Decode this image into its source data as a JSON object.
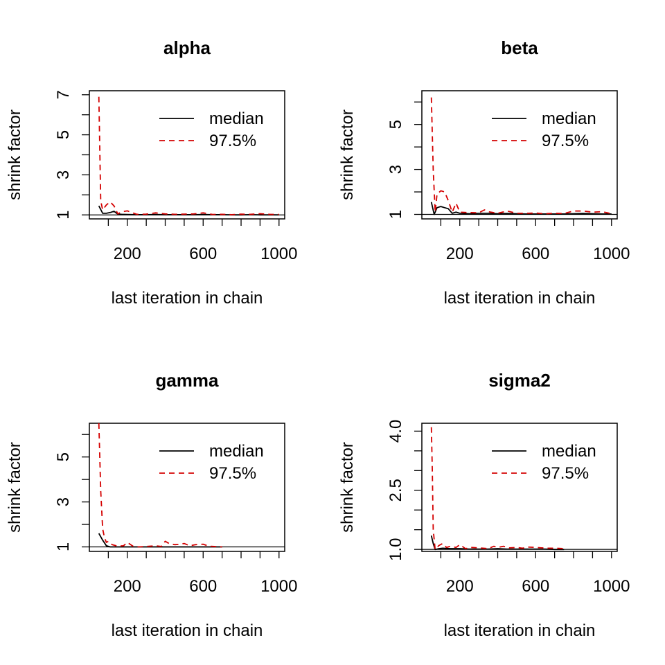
{
  "chart_data": [
    {
      "type": "line",
      "title": "alpha",
      "xlabel": "last iteration in chain",
      "ylabel": "shrink factor",
      "xlim": [
        0,
        1030
      ],
      "ylim": [
        0.8,
        7.2
      ],
      "x_ticks": [
        200,
        600,
        1000
      ],
      "y_ticks": [
        1,
        2,
        3,
        4,
        5,
        6,
        7
      ],
      "y_tick_labels": {
        "1": "1",
        "3": "3",
        "5": "5",
        "7": "7"
      },
      "legend": {
        "position": "top-right",
        "entries": [
          {
            "label": "median",
            "series": 0
          },
          {
            "label": "97.5%",
            "series": 1
          }
        ]
      },
      "series": [
        {
          "label_key": "median",
          "color": "#000000",
          "dash": "solid",
          "x": [
            50,
            70,
            90,
            110,
            130,
            150,
            170,
            200,
            250,
            300,
            350,
            400,
            450,
            500,
            550,
            600,
            650,
            700,
            750,
            800,
            850,
            900,
            950,
            1000
          ],
          "y": [
            1.45,
            1.08,
            1.08,
            1.12,
            1.18,
            1.04,
            1.03,
            1.02,
            1.01,
            1.01,
            1.02,
            1.01,
            1.01,
            1.01,
            1.01,
            1.02,
            1.01,
            1.01,
            1.0,
            1.0,
            1.01,
            1.0,
            1.0,
            1.0
          ]
        },
        {
          "label_key": "97.5%",
          "color": "#d40000",
          "dash": "dashed",
          "x": [
            50,
            60,
            70,
            90,
            110,
            130,
            150,
            170,
            200,
            250,
            300,
            350,
            400,
            450,
            500,
            550,
            600,
            650,
            700,
            750,
            800,
            850,
            900,
            950,
            1000
          ],
          "y": [
            6.9,
            1.7,
            1.25,
            1.5,
            1.65,
            1.45,
            1.05,
            1.15,
            1.2,
            1.03,
            1.04,
            1.1,
            1.05,
            1.03,
            1.04,
            1.05,
            1.1,
            1.02,
            1.03,
            1.01,
            1.04,
            1.03,
            1.06,
            1.03,
            1.02
          ]
        }
      ]
    },
    {
      "type": "line",
      "title": "beta",
      "xlabel": "last iteration in chain",
      "ylabel": "shrink factor",
      "xlim": [
        0,
        1030
      ],
      "ylim": [
        0.8,
        6.5
      ],
      "x_ticks": [
        200,
        600,
        1000
      ],
      "y_ticks": [
        1,
        2,
        3,
        4,
        5,
        6
      ],
      "y_tick_labels": {
        "1": "1",
        "3": "3",
        "5": "5"
      },
      "legend": {
        "position": "top-right",
        "entries": [
          {
            "label": "median",
            "series": 0
          },
          {
            "label": "97.5%",
            "series": 1
          }
        ]
      },
      "series": [
        {
          "label_key": "median",
          "color": "#000000",
          "dash": "solid",
          "x": [
            50,
            65,
            80,
            100,
            120,
            140,
            160,
            180,
            200,
            250,
            300,
            350,
            400,
            450,
            500,
            550,
            600,
            650,
            700,
            750,
            800,
            850,
            900,
            950,
            1000
          ],
          "y": [
            1.55,
            1.0,
            1.3,
            1.35,
            1.3,
            1.25,
            1.05,
            1.1,
            1.05,
            1.03,
            1.05,
            1.05,
            1.03,
            1.04,
            1.03,
            1.02,
            1.02,
            1.02,
            1.02,
            1.02,
            1.03,
            1.04,
            1.03,
            1.02,
            1.02
          ]
        },
        {
          "label_key": "97.5%",
          "color": "#d40000",
          "dash": "dashed",
          "x": [
            50,
            60,
            70,
            80,
            100,
            120,
            140,
            160,
            180,
            200,
            250,
            300,
            330,
            350,
            400,
            450,
            500,
            550,
            600,
            650,
            700,
            750,
            800,
            850,
            900,
            950,
            1000
          ],
          "y": [
            6.2,
            3.0,
            1.1,
            1.9,
            2.05,
            2.0,
            1.6,
            1.1,
            1.5,
            1.1,
            1.08,
            1.07,
            1.2,
            1.12,
            1.05,
            1.15,
            1.05,
            1.05,
            1.06,
            1.03,
            1.05,
            1.04,
            1.15,
            1.15,
            1.1,
            1.12,
            1.03
          ]
        }
      ]
    },
    {
      "type": "line",
      "title": "gamma",
      "xlabel": "last iteration in chain",
      "ylabel": "shrink factor",
      "xlim": [
        0,
        1030
      ],
      "ylim": [
        0.8,
        6.5
      ],
      "x_ticks": [
        200,
        600,
        1000
      ],
      "y_ticks": [
        1,
        2,
        3,
        4,
        5,
        6
      ],
      "y_tick_labels": {
        "1": "1",
        "3": "3",
        "5": "5"
      },
      "legend": {
        "position": "top-right",
        "entries": [
          {
            "label": "median",
            "series": 0
          },
          {
            "label": "97.5%",
            "series": 1
          }
        ]
      },
      "series": [
        {
          "label_key": "median",
          "color": "#000000",
          "dash": "solid",
          "x": [
            50,
            70,
            90,
            110,
            150,
            200,
            250,
            300,
            350,
            400,
            450,
            500,
            550,
            600,
            650,
            700
          ],
          "y": [
            1.6,
            1.3,
            1.05,
            1.0,
            1.0,
            1.0,
            1.0,
            1.0,
            1.0,
            1.0,
            1.0,
            1.0,
            1.0,
            1.0,
            1.0,
            1.0
          ]
        },
        {
          "label_key": "97.5%",
          "color": "#d40000",
          "dash": "dashed",
          "x": [
            50,
            60,
            70,
            80,
            90,
            100,
            120,
            150,
            180,
            200,
            230,
            260,
            300,
            350,
            380,
            400,
            420,
            450,
            480,
            500,
            530,
            560,
            600,
            630,
            660,
            700
          ],
          "y": [
            6.5,
            3.5,
            1.8,
            1.4,
            1.2,
            1.25,
            1.1,
            1.03,
            1.05,
            1.2,
            1.03,
            1.0,
            1.02,
            1.05,
            1.02,
            1.25,
            1.15,
            1.1,
            1.12,
            1.15,
            1.05,
            1.1,
            1.12,
            1.03,
            1.02,
            1.0
          ]
        }
      ]
    },
    {
      "type": "line",
      "title": "sigma2",
      "xlabel": "last iteration in chain",
      "ylabel": "shrink factor",
      "xlim": [
        0,
        1030
      ],
      "ylim": [
        0.95,
        4.2
      ],
      "x_ticks": [
        200,
        600,
        1000
      ],
      "y_ticks": [
        1.0,
        1.5,
        2.0,
        2.5,
        3.0,
        3.5,
        4.0
      ],
      "y_tick_labels": {
        "1": "1.0",
        "2.5": "2.5",
        "4": "4.0"
      },
      "legend": {
        "position": "top-right",
        "entries": [
          {
            "label": "median",
            "series": 0
          },
          {
            "label": "97.5%",
            "series": 1
          }
        ]
      },
      "series": [
        {
          "label_key": "median",
          "color": "#000000",
          "dash": "solid",
          "x": [
            50,
            60,
            70,
            90,
            110,
            150,
            200,
            250,
            300,
            350,
            400,
            450,
            500,
            550,
            600,
            650,
            700,
            750
          ],
          "y": [
            1.35,
            1.15,
            1.0,
            1.02,
            1.03,
            1.02,
            1.02,
            1.01,
            1.01,
            1.01,
            1.02,
            1.01,
            1.01,
            1.01,
            1.01,
            1.01,
            1.0,
            1.0
          ]
        },
        {
          "label_key": "97.5%",
          "color": "#d40000",
          "dash": "dashed",
          "x": [
            50,
            55,
            60,
            70,
            80,
            90,
            110,
            130,
            150,
            180,
            200,
            230,
            260,
            300,
            350,
            380,
            400,
            430,
            460,
            500,
            530,
            560,
            600,
            630,
            660,
            700,
            750
          ],
          "y": [
            4.1,
            3.0,
            1.5,
            1.0,
            1.05,
            1.1,
            1.15,
            1.05,
            1.08,
            1.05,
            1.12,
            1.02,
            1.05,
            1.04,
            1.02,
            1.08,
            1.05,
            1.08,
            1.04,
            1.05,
            1.03,
            1.06,
            1.05,
            1.04,
            1.03,
            1.03,
            1.02
          ]
        }
      ]
    }
  ]
}
